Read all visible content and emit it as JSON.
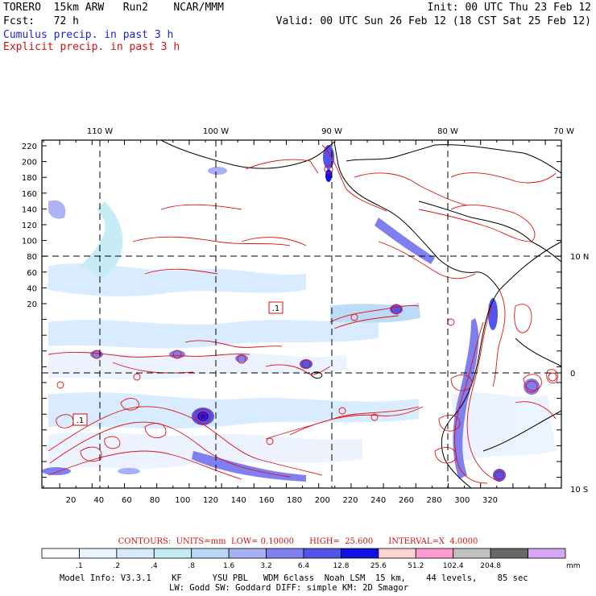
{
  "header": {
    "line1_left": "TORERO  15km ARW   Run2    NCAR/MMM",
    "line1_right": "Init: 00 UTC Thu 23 Feb 12",
    "line2_left": "Fcst:   72 h",
    "line2_right": "Valid: 00 UTC Sun 26 Feb 12 (18 CST Sat 25 Feb 12)",
    "cumulus_label": "Cumulus precip. in past 3 h",
    "explicit_label": "Explicit precip. in past 3 h"
  },
  "map": {
    "top_lon_labels": [
      "110 W",
      "100 W",
      "90 W",
      "80 W",
      "70 W"
    ],
    "right_lat_labels": [
      "10 N",
      "0",
      "10 S"
    ],
    "left_grid_labels": [
      "220",
      "200",
      "180",
      "160",
      "140",
      "120",
      "100",
      "80",
      "60",
      "40",
      "20"
    ],
    "bottom_grid_labels": [
      "20",
      "40",
      "60",
      "80",
      "100",
      "120",
      "140",
      "160",
      "180",
      "200",
      "220",
      "240",
      "260",
      "280",
      "300",
      "320"
    ],
    "contour_box_labels": [
      ".1",
      ".1"
    ],
    "colors": {
      "explicit_contour": "#e01010",
      "coast": "#000000",
      "grid_dash": "#000000"
    }
  },
  "contours_caption": "CONTOURS:  UNITS=mm  LOW= 0.10000      HIGH=  25.600      INTERVAL=X  4.0000",
  "colorbar": {
    "unit": "mm",
    "labels": [
      ".1",
      ".2",
      ".4",
      ".8",
      "1.6",
      "3.2",
      "6.4",
      "12.8",
      "25.6",
      "51.2",
      "102.4",
      "204.8"
    ],
    "colors": [
      "#ffffff",
      "#ebf3ff",
      "#d7ebff",
      "#c3ecf5",
      "#b9daf7",
      "#a9aff4",
      "#7f7ff0",
      "#5454ea",
      "#1010e0",
      "#ffd2d2",
      "#ff9bd0",
      "#c0c0c0",
      "#686868",
      "#d7a7f8"
    ]
  },
  "model_info": {
    "line1": "Model Info: V3.3.1    KF      YSU PBL   WDM 6class  Noah LSM  15 km,    44 levels,    85 sec",
    "line2": "LW: Godd SW: Goddard DIFF: simple KM: 2D Smagor"
  }
}
